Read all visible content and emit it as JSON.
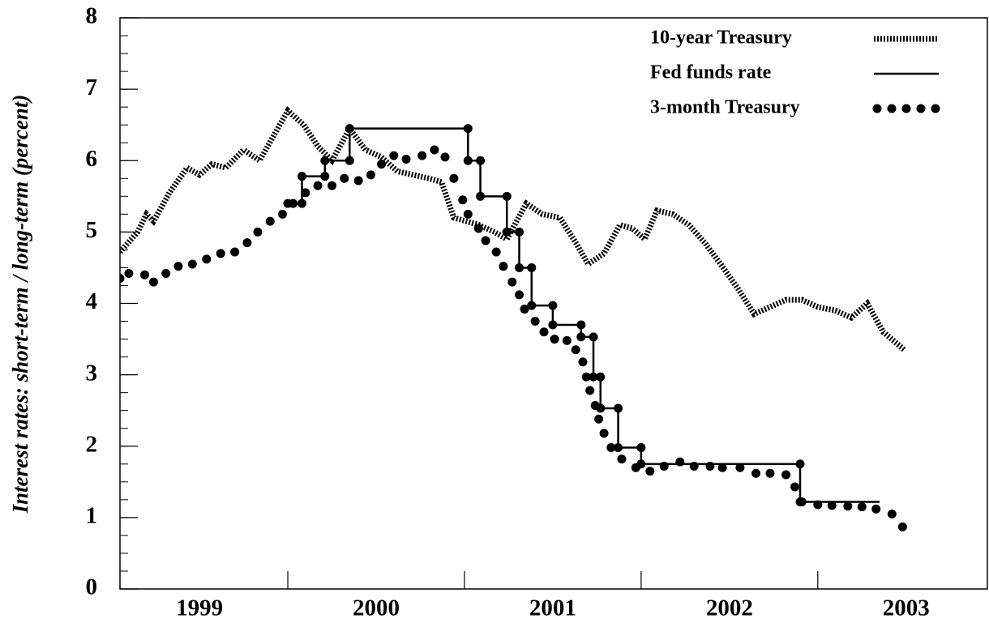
{
  "chart_data": {
    "type": "line",
    "y_label": "Interest rates: short-term / long-term (percent)",
    "xlim": [
      1999.05,
      2003.96
    ],
    "ylim": [
      0,
      8
    ],
    "yticks": [
      0,
      1,
      2,
      3,
      4,
      5,
      6,
      7,
      8
    ],
    "yminor_step": 0.25,
    "xticks": [
      {
        "value": 1999.5,
        "label": "1999"
      },
      {
        "value": 2000.5,
        "label": "2000"
      },
      {
        "value": 2001.5,
        "label": "2001"
      },
      {
        "value": 2002.5,
        "label": "2002"
      },
      {
        "value": 2003.5,
        "label": "2003"
      }
    ],
    "xboundaries": [
      2000,
      2001,
      2002,
      2003
    ],
    "legend": "upper right",
    "series": [
      {
        "name": "10-year Treasury",
        "style": "hatched",
        "color": "#000",
        "x": [
          1999.05,
          1999.15,
          1999.2,
          1999.24,
          1999.33,
          1999.43,
          1999.5,
          1999.57,
          1999.65,
          1999.75,
          1999.84,
          2000.0,
          2000.09,
          2000.17,
          2000.25,
          2000.35,
          2000.44,
          2000.53,
          2000.62,
          2000.71,
          2000.8,
          2000.87,
          2000.94,
          2001.01,
          2001.08,
          2001.17,
          2001.24,
          2001.35,
          2001.44,
          2001.54,
          2001.63,
          2001.7,
          2001.79,
          2001.88,
          2001.95,
          2002.02,
          2002.09,
          2002.18,
          2002.27,
          2002.36,
          2002.45,
          2002.55,
          2002.64,
          2002.73,
          2002.82,
          2002.91,
          2003.0,
          2003.1,
          2003.19,
          2003.28,
          2003.37,
          2003.49
        ],
        "values": [
          4.72,
          5.0,
          5.25,
          5.15,
          5.55,
          5.9,
          5.8,
          5.95,
          5.9,
          6.15,
          6.0,
          6.7,
          6.5,
          6.2,
          6.0,
          6.45,
          6.15,
          6.05,
          5.85,
          5.8,
          5.75,
          5.7,
          5.2,
          5.15,
          5.1,
          5.0,
          4.9,
          5.4,
          5.25,
          5.2,
          4.85,
          4.55,
          4.7,
          5.1,
          5.05,
          4.9,
          5.3,
          5.25,
          5.1,
          4.85,
          4.55,
          4.2,
          3.85,
          3.95,
          4.05,
          4.05,
          3.95,
          3.9,
          3.8,
          4.0,
          3.6,
          3.35
        ]
      },
      {
        "name": "Fed funds rate",
        "style": "step",
        "color": "#000",
        "x": [
          2000.0,
          2000.08,
          2000.21,
          2000.35,
          2001.02,
          2001.09,
          2001.24,
          2001.31,
          2001.38,
          2001.5,
          2001.66,
          2001.73,
          2001.77,
          2001.87,
          2002.0,
          2002.9,
          2003.35
        ],
        "values": [
          5.4,
          5.78,
          6.0,
          6.45,
          6.0,
          5.5,
          5.0,
          4.5,
          3.97,
          3.7,
          3.53,
          2.97,
          2.53,
          1.98,
          1.75,
          1.22,
          1.22
        ]
      },
      {
        "name": "3-month Treasury",
        "style": "dots",
        "color": "#000",
        "x": [
          1999.05,
          1999.1,
          1999.19,
          1999.24,
          1999.31,
          1999.38,
          1999.46,
          1999.54,
          1999.62,
          1999.7,
          1999.77,
          1999.83,
          1999.9,
          1999.97,
          2000.03,
          2000.1,
          2000.17,
          2000.25,
          2000.32,
          2000.4,
          2000.47,
          2000.53,
          2000.6,
          2000.67,
          2000.76,
          2000.83,
          2000.89,
          2000.94,
          2000.99,
          2001.02,
          2001.08,
          2001.12,
          2001.18,
          2001.22,
          2001.27,
          2001.31,
          2001.34,
          2001.4,
          2001.45,
          2001.51,
          2001.58,
          2001.63,
          2001.67,
          2001.69,
          2001.71,
          2001.74,
          2001.76,
          2001.79,
          2001.83,
          2001.89,
          2001.97,
          2002.05,
          2002.13,
          2002.22,
          2002.3,
          2002.39,
          2002.46,
          2002.56,
          2002.65,
          2002.73,
          2002.82,
          2002.87,
          2002.91,
          2003.0,
          2003.08,
          2003.17,
          2003.25,
          2003.33,
          2003.42,
          2003.48
        ],
        "values": [
          4.35,
          4.42,
          4.4,
          4.3,
          4.42,
          4.52,
          4.55,
          4.62,
          4.7,
          4.72,
          4.85,
          5.0,
          5.15,
          5.25,
          5.4,
          5.55,
          5.65,
          5.65,
          5.75,
          5.72,
          5.8,
          5.95,
          6.07,
          6.02,
          6.07,
          6.15,
          6.05,
          5.75,
          5.45,
          5.25,
          5.05,
          4.88,
          4.72,
          4.52,
          4.3,
          4.12,
          3.92,
          3.75,
          3.6,
          3.5,
          3.48,
          3.35,
          3.18,
          2.97,
          2.78,
          2.57,
          2.38,
          2.18,
          1.98,
          1.82,
          1.7,
          1.65,
          1.72,
          1.78,
          1.72,
          1.72,
          1.7,
          1.7,
          1.62,
          1.62,
          1.6,
          1.43,
          1.22,
          1.18,
          1.17,
          1.16,
          1.15,
          1.12,
          1.05,
          0.87
        ]
      }
    ]
  }
}
